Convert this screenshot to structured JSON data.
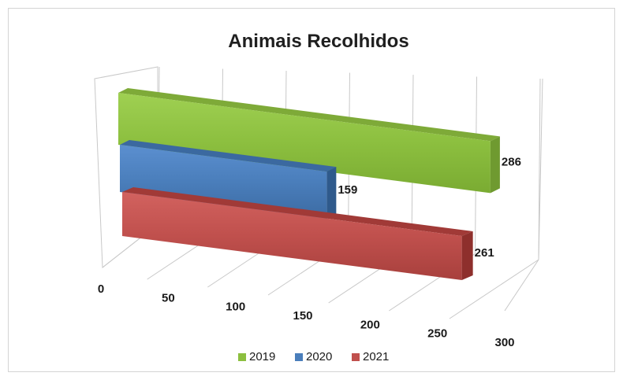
{
  "chart_data": {
    "type": "bar",
    "orientation": "horizontal",
    "style": "3d",
    "title": "Animais Recolhidos",
    "xlim": [
      0,
      300
    ],
    "ticks": [
      "0",
      "50",
      "100",
      "150",
      "200",
      "250",
      "300"
    ],
    "grid": true,
    "legend": "bottom",
    "series": [
      {
        "name": "2019",
        "value": 286,
        "label": "286",
        "color": "#8cbf3f"
      },
      {
        "name": "2020",
        "value": 159,
        "label": "159",
        "color": "#4a7ebb"
      },
      {
        "name": "2021",
        "value": 261,
        "label": "261",
        "color": "#c0504d"
      }
    ]
  }
}
